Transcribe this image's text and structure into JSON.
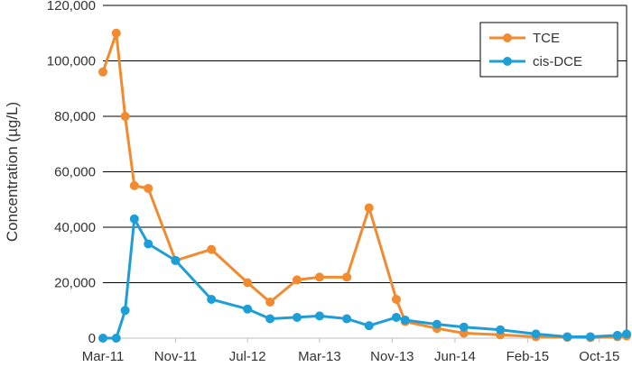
{
  "chart_data": {
    "type": "line",
    "ylabel": "Concentration (µg/L)",
    "ylim": [
      0,
      120000
    ],
    "yticks": [
      0,
      20000,
      40000,
      60000,
      80000,
      100000,
      120000
    ],
    "ytick_labels": [
      "0",
      "20,000",
      "40,000",
      "60,000",
      "80,000",
      "100,000",
      "120,000"
    ],
    "xlim": [
      "2011-03-01",
      "2016-01-01"
    ],
    "xticks": [
      "2011-03-01",
      "2011-11-01",
      "2012-07-01",
      "2013-03-01",
      "2013-11-01",
      "2014-06-01",
      "2015-02-01",
      "2015-10-01"
    ],
    "xtick_labels": [
      "Mar-11",
      "Nov-11",
      "Jul-12",
      "Mar-13",
      "Nov-13",
      "Jun-14",
      "Feb-15",
      "Oct-15"
    ],
    "grid": "horizontal",
    "legend": "top-right",
    "series": [
      {
        "name": "TCE",
        "color": "#F28A30",
        "points": [
          {
            "x": "2011-03-01",
            "y": 96000
          },
          {
            "x": "2011-04-15",
            "y": 110000
          },
          {
            "x": "2011-05-15",
            "y": 80000
          },
          {
            "x": "2011-06-15",
            "y": 55000
          },
          {
            "x": "2011-08-01",
            "y": 54000
          },
          {
            "x": "2011-11-01",
            "y": 28000
          },
          {
            "x": "2012-03-01",
            "y": 32000
          },
          {
            "x": "2012-07-01",
            "y": 20000
          },
          {
            "x": "2012-09-15",
            "y": 13000
          },
          {
            "x": "2012-12-15",
            "y": 21000
          },
          {
            "x": "2013-03-01",
            "y": 22000
          },
          {
            "x": "2013-06-01",
            "y": 22000
          },
          {
            "x": "2013-08-15",
            "y": 47000
          },
          {
            "x": "2013-11-15",
            "y": 14000
          },
          {
            "x": "2013-12-15",
            "y": 6000
          },
          {
            "x": "2014-04-01",
            "y": 3500
          },
          {
            "x": "2014-07-01",
            "y": 1800
          },
          {
            "x": "2014-11-01",
            "y": 1200
          },
          {
            "x": "2015-03-01",
            "y": 500
          },
          {
            "x": "2015-06-15",
            "y": 300
          },
          {
            "x": "2015-09-01",
            "y": 200
          },
          {
            "x": "2015-12-01",
            "y": 500
          },
          {
            "x": "2016-01-01",
            "y": 800
          }
        ]
      },
      {
        "name": "cis-DCE",
        "color": "#1E9ED6",
        "points": [
          {
            "x": "2011-03-01",
            "y": 0
          },
          {
            "x": "2011-04-15",
            "y": 0
          },
          {
            "x": "2011-05-15",
            "y": 10000
          },
          {
            "x": "2011-06-15",
            "y": 43000
          },
          {
            "x": "2011-08-01",
            "y": 34000
          },
          {
            "x": "2011-11-01",
            "y": 28000
          },
          {
            "x": "2012-03-01",
            "y": 14000
          },
          {
            "x": "2012-07-01",
            "y": 10500
          },
          {
            "x": "2012-09-15",
            "y": 7000
          },
          {
            "x": "2012-12-15",
            "y": 7500
          },
          {
            "x": "2013-03-01",
            "y": 8000
          },
          {
            "x": "2013-06-01",
            "y": 7000
          },
          {
            "x": "2013-08-15",
            "y": 4500
          },
          {
            "x": "2013-11-15",
            "y": 7500
          },
          {
            "x": "2013-12-15",
            "y": 6500
          },
          {
            "x": "2014-04-01",
            "y": 5000
          },
          {
            "x": "2014-07-01",
            "y": 4000
          },
          {
            "x": "2014-11-01",
            "y": 3000
          },
          {
            "x": "2015-03-01",
            "y": 1500
          },
          {
            "x": "2015-06-15",
            "y": 500
          },
          {
            "x": "2015-09-01",
            "y": 500
          },
          {
            "x": "2015-12-01",
            "y": 1000
          },
          {
            "x": "2016-01-01",
            "y": 1500
          }
        ]
      }
    ]
  }
}
